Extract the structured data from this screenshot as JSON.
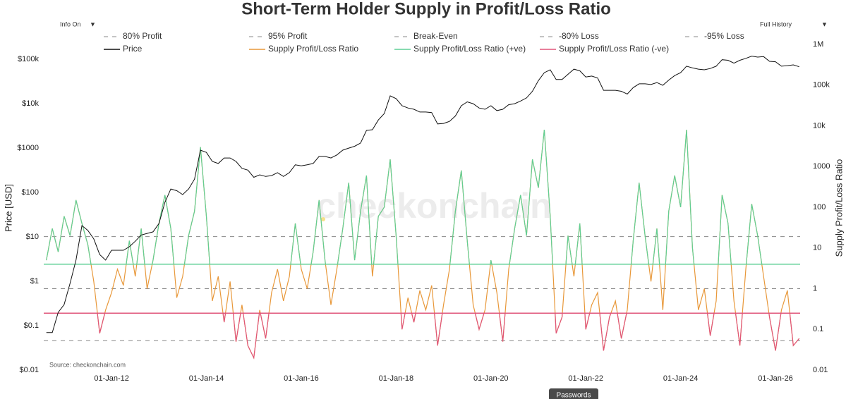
{
  "controls": {
    "info": "Info On",
    "range": "Full History",
    "button": "Passwords"
  },
  "chart_data": {
    "type": "line",
    "title": "Short-Term Holder Supply in Profit/Loss Ratio",
    "ylabel": "Price [USD]",
    "y2label": "Supply Profit/Loss Ratio",
    "annotation": "Source: checkonchain.com",
    "watermark": "checkonchain",
    "ylog": true,
    "y2log": true,
    "xlim": [
      2010.57,
      2026.52
    ],
    "ylim": [
      0.01,
      290000
    ],
    "y2lim": [
      0.01,
      1370000
    ],
    "xticks": [
      {
        "value": 2012,
        "label": "01-Jan-12"
      },
      {
        "value": 2014,
        "label": "01-Jan-14"
      },
      {
        "value": 2016,
        "label": "01-Jan-16"
      },
      {
        "value": 2018,
        "label": "01-Jan-18"
      },
      {
        "value": 2020,
        "label": "01-Jan-20"
      },
      {
        "value": 2022,
        "label": "01-Jan-22"
      },
      {
        "value": 2024,
        "label": "01-Jan-24"
      },
      {
        "value": 2026,
        "label": "01-Jan-26"
      }
    ],
    "yticks": [
      {
        "value": 0.01,
        "label": "$0.01"
      },
      {
        "value": 0.1,
        "label": "$0.1"
      },
      {
        "value": 1,
        "label": "$1"
      },
      {
        "value": 10,
        "label": "$10"
      },
      {
        "value": 100,
        "label": "$100"
      },
      {
        "value": 1000,
        "label": "$1000"
      },
      {
        "value": 10000,
        "label": "$10k"
      },
      {
        "value": 100000,
        "label": "$100k"
      }
    ],
    "y2ticks": [
      0.01,
      0.1,
      1,
      10,
      100,
      1000,
      {
        "value": 10000,
        "label": "10k"
      },
      {
        "value": 100000,
        "label": "100k"
      },
      {
        "value": 1000000,
        "label": "1M"
      }
    ],
    "levels": [
      {
        "name": "80% Profit",
        "value": 4
      },
      {
        "name": "95% Profit",
        "value": 19
      },
      {
        "name": "Break-Even",
        "value": 1
      },
      {
        "name": "-80% Loss",
        "value": 0.25
      },
      {
        "name": "-95% Loss",
        "value": 0.0526
      }
    ],
    "level_color": "#888888",
    "x": [
      2010.625,
      2010.75,
      2010.875,
      2011,
      2011.125,
      2011.25,
      2011.375,
      2011.5,
      2011.625,
      2011.75,
      2011.875,
      2012,
      2012.125,
      2012.25,
      2012.375,
      2012.5,
      2012.625,
      2012.75,
      2012.875,
      2013,
      2013.125,
      2013.25,
      2013.375,
      2013.5,
      2013.625,
      2013.75,
      2013.875,
      2014,
      2014.125,
      2014.25,
      2014.375,
      2014.5,
      2014.625,
      2014.75,
      2014.875,
      2015,
      2015.125,
      2015.25,
      2015.375,
      2015.5,
      2015.625,
      2015.75,
      2015.875,
      2016,
      2016.125,
      2016.25,
      2016.375,
      2016.5,
      2016.625,
      2016.75,
      2016.875,
      2017,
      2017.125,
      2017.25,
      2017.375,
      2017.5,
      2017.625,
      2017.75,
      2017.875,
      2018,
      2018.125,
      2018.25,
      2018.375,
      2018.5,
      2018.625,
      2018.75,
      2018.875,
      2019,
      2019.125,
      2019.25,
      2019.375,
      2019.5,
      2019.625,
      2019.75,
      2019.875,
      2020,
      2020.125,
      2020.25,
      2020.375,
      2020.5,
      2020.625,
      2020.75,
      2020.875,
      2021,
      2021.125,
      2021.25,
      2021.375,
      2021.5,
      2021.625,
      2021.75,
      2021.875,
      2022,
      2022.125,
      2022.25,
      2022.375,
      2022.5,
      2022.625,
      2022.75,
      2022.875,
      2023,
      2023.125,
      2023.25,
      2023.375,
      2023.5,
      2023.625,
      2023.75,
      2023.875,
      2024,
      2024.125,
      2024.25,
      2024.375,
      2024.5,
      2024.625,
      2024.75,
      2024.875,
      2025,
      2025.125,
      2025.25,
      2025.375,
      2025.5,
      2025.625,
      2025.75,
      2025.875,
      2026,
      2026.125,
      2026.25,
      2026.375,
      2026.5
    ],
    "series": [
      {
        "name": "Price",
        "color": "#111111",
        "axis": "y",
        "values": [
          0.07,
          0.07,
          0.2,
          0.3,
          0.9,
          3,
          18,
          14,
          9,
          4,
          3,
          5,
          5,
          5,
          6,
          8,
          11,
          12,
          13,
          20,
          60,
          120,
          110,
          90,
          120,
          200,
          900,
          800,
          500,
          450,
          600,
          600,
          500,
          350,
          320,
          220,
          250,
          230,
          240,
          280,
          230,
          280,
          420,
          400,
          420,
          450,
          650,
          650,
          600,
          700,
          900,
          1000,
          1100,
          1300,
          2500,
          2600,
          4300,
          6000,
          15000,
          13000,
          9000,
          8000,
          7500,
          6500,
          6500,
          6300,
          3500,
          3600,
          4000,
          5300,
          9000,
          11000,
          10000,
          8000,
          7500,
          9000,
          7000,
          7500,
          9500,
          10000,
          11500,
          13500,
          19000,
          33000,
          50000,
          58000,
          35000,
          35000,
          46000,
          60000,
          55000,
          40000,
          42000,
          38000,
          20000,
          20000,
          20000,
          19000,
          16500,
          23000,
          28000,
          28000,
          27000,
          30000,
          26000,
          34000,
          43000,
          50000,
          70000,
          64000,
          60000,
          58000,
          62000,
          70000,
          98000,
          95000,
          82000,
          95000,
          105000,
          118000,
          112000,
          115000,
          90000,
          88000,
          70000,
          72000,
          75000,
          68000
        ]
      },
      {
        "name": "Supply Profit/Loss Ratio",
        "color": "#e8983a",
        "axis": "y2",
        "values": [
          5,
          30,
          8,
          60,
          20,
          150,
          40,
          12,
          1.5,
          0.08,
          0.3,
          0.8,
          3,
          1.2,
          15,
          2,
          30,
          1,
          5,
          40,
          200,
          30,
          0.6,
          2,
          20,
          80,
          3000,
          60,
          0.5,
          2,
          0.15,
          1.5,
          0.05,
          0.4,
          0.04,
          0.02,
          0.3,
          0.06,
          0.8,
          3,
          0.5,
          2,
          40,
          3,
          1,
          8,
          150,
          5,
          0.4,
          3,
          30,
          400,
          5,
          80,
          600,
          2,
          60,
          100,
          1500,
          20,
          0.1,
          0.6,
          0.15,
          0.9,
          0.3,
          1.2,
          0.04,
          0.4,
          3,
          80,
          800,
          15,
          0.4,
          0.1,
          0.3,
          5,
          0.8,
          0.05,
          3,
          30,
          200,
          20,
          1500,
          300,
          8000,
          60,
          0.08,
          0.2,
          20,
          2,
          40,
          0.1,
          0.4,
          0.8,
          0.03,
          0.2,
          0.5,
          0.06,
          0.3,
          15,
          400,
          20,
          1.5,
          30,
          0.3,
          80,
          600,
          100,
          8000,
          10,
          0.3,
          1,
          0.07,
          0.5,
          200,
          40,
          0.5,
          0.04,
          3,
          120,
          20,
          2,
          0.2,
          0.03,
          0.3,
          0.9,
          0.04,
          0.06
        ]
      },
      {
        "name": "Supply Profit/Loss Ratio (+ve)",
        "color": "#5fcf95",
        "axis": "y2",
        "above": 4
      },
      {
        "name": "Supply Profit/Loss Ratio (-ve)",
        "color": "#e0557a",
        "axis": "y2",
        "below": 0.25
      }
    ]
  }
}
